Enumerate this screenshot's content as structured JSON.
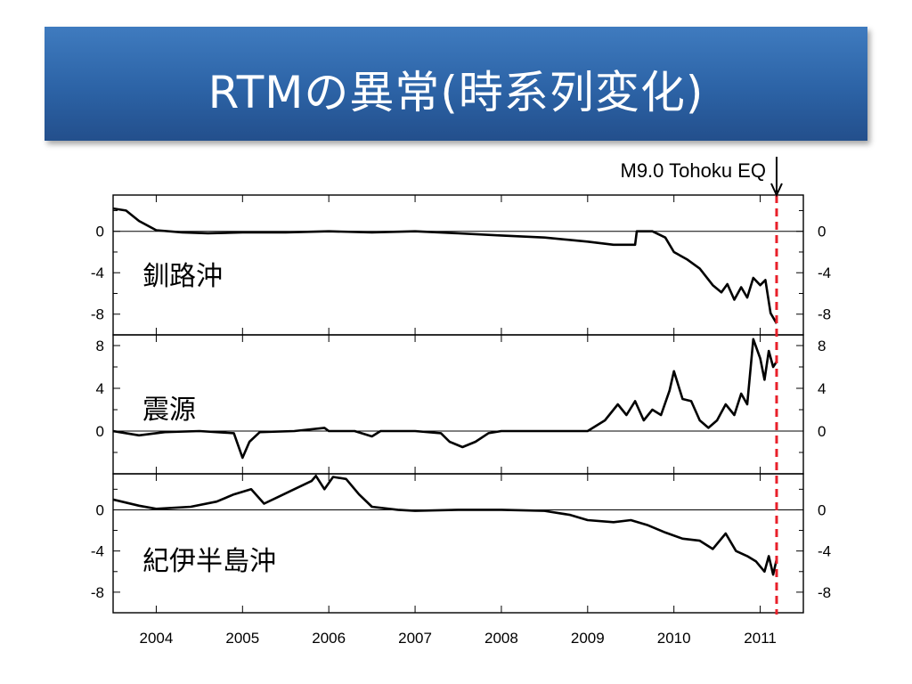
{
  "title": "RTMの異常(時系列変化)",
  "chart_data": {
    "type": "line",
    "x_tick_labels": [
      "2004",
      "2005",
      "2006",
      "2007",
      "2008",
      "2009",
      "2010",
      "2011"
    ],
    "x_range": [
      2003.5,
      2011.5
    ],
    "annotation": {
      "text": "M9.0 Tohoku EQ",
      "x": 2011.19
    },
    "panels": [
      {
        "label": "釧路沖",
        "ylim": [
          -10,
          3.5
        ],
        "yticks": [
          0,
          -4,
          -8
        ],
        "points": [
          [
            2003.5,
            2.2
          ],
          [
            2003.65,
            2.0
          ],
          [
            2003.8,
            1.0
          ],
          [
            2004.0,
            0.1
          ],
          [
            2004.3,
            -0.1
          ],
          [
            2004.6,
            -0.2
          ],
          [
            2005.0,
            -0.1
          ],
          [
            2005.5,
            -0.1
          ],
          [
            2006.0,
            0.0
          ],
          [
            2006.5,
            -0.1
          ],
          [
            2007.0,
            0.0
          ],
          [
            2007.5,
            -0.2
          ],
          [
            2008.0,
            -0.4
          ],
          [
            2008.5,
            -0.6
          ],
          [
            2009.0,
            -1.0
          ],
          [
            2009.3,
            -1.3
          ],
          [
            2009.55,
            -1.3
          ],
          [
            2009.57,
            0.0
          ],
          [
            2009.75,
            0.0
          ],
          [
            2009.9,
            -0.6
          ],
          [
            2010.0,
            -2.0
          ],
          [
            2010.15,
            -2.7
          ],
          [
            2010.3,
            -3.6
          ],
          [
            2010.45,
            -5.2
          ],
          [
            2010.55,
            -5.9
          ],
          [
            2010.62,
            -5.1
          ],
          [
            2010.7,
            -6.6
          ],
          [
            2010.78,
            -5.4
          ],
          [
            2010.85,
            -6.4
          ],
          [
            2010.92,
            -4.5
          ],
          [
            2011.0,
            -5.2
          ],
          [
            2011.06,
            -4.7
          ],
          [
            2011.12,
            -7.9
          ],
          [
            2011.19,
            -8.9
          ]
        ]
      },
      {
        "label": "震源",
        "ylim": [
          -4,
          9
        ],
        "yticks": [
          8,
          4,
          0
        ],
        "points": [
          [
            2003.5,
            0.0
          ],
          [
            2003.8,
            -0.4
          ],
          [
            2004.1,
            -0.1
          ],
          [
            2004.5,
            0.0
          ],
          [
            2004.9,
            -0.2
          ],
          [
            2005.0,
            -2.5
          ],
          [
            2005.08,
            -1.0
          ],
          [
            2005.2,
            -0.1
          ],
          [
            2005.6,
            0.0
          ],
          [
            2005.95,
            0.3
          ],
          [
            2006.0,
            0.0
          ],
          [
            2006.3,
            0.0
          ],
          [
            2006.5,
            -0.5
          ],
          [
            2006.6,
            0.0
          ],
          [
            2007.0,
            0.0
          ],
          [
            2007.3,
            -0.2
          ],
          [
            2007.4,
            -1.0
          ],
          [
            2007.55,
            -1.5
          ],
          [
            2007.7,
            -1.0
          ],
          [
            2007.85,
            -0.2
          ],
          [
            2008.0,
            0.0
          ],
          [
            2008.5,
            0.0
          ],
          [
            2009.0,
            0.0
          ],
          [
            2009.2,
            1.0
          ],
          [
            2009.35,
            2.5
          ],
          [
            2009.45,
            1.5
          ],
          [
            2009.55,
            2.8
          ],
          [
            2009.65,
            1.0
          ],
          [
            2009.75,
            2.0
          ],
          [
            2009.85,
            1.5
          ],
          [
            2009.95,
            3.8
          ],
          [
            2010.0,
            5.6
          ],
          [
            2010.1,
            3.0
          ],
          [
            2010.2,
            2.8
          ],
          [
            2010.3,
            1.0
          ],
          [
            2010.4,
            0.3
          ],
          [
            2010.5,
            1.0
          ],
          [
            2010.6,
            2.5
          ],
          [
            2010.7,
            1.5
          ],
          [
            2010.78,
            3.5
          ],
          [
            2010.85,
            2.5
          ],
          [
            2010.92,
            8.6
          ],
          [
            2011.0,
            6.8
          ],
          [
            2011.05,
            4.8
          ],
          [
            2011.1,
            7.5
          ],
          [
            2011.15,
            6.0
          ],
          [
            2011.19,
            6.5
          ]
        ]
      },
      {
        "label": "紀伊半島沖",
        "ylim": [
          -10,
          3.5
        ],
        "yticks": [
          0,
          -4,
          -8
        ],
        "points": [
          [
            2003.5,
            1.0
          ],
          [
            2003.8,
            0.4
          ],
          [
            2004.0,
            0.1
          ],
          [
            2004.4,
            0.3
          ],
          [
            2004.7,
            0.8
          ],
          [
            2004.9,
            1.5
          ],
          [
            2005.1,
            2.0
          ],
          [
            2005.25,
            0.6
          ],
          [
            2005.4,
            1.2
          ],
          [
            2005.6,
            2.0
          ],
          [
            2005.8,
            2.8
          ],
          [
            2005.85,
            3.3
          ],
          [
            2005.95,
            2.0
          ],
          [
            2006.05,
            3.2
          ],
          [
            2006.2,
            3.0
          ],
          [
            2006.35,
            1.5
          ],
          [
            2006.5,
            0.3
          ],
          [
            2006.8,
            0.0
          ],
          [
            2007.0,
            -0.1
          ],
          [
            2007.5,
            0.0
          ],
          [
            2008.0,
            0.0
          ],
          [
            2008.5,
            -0.1
          ],
          [
            2008.8,
            -0.5
          ],
          [
            2009.0,
            -1.0
          ],
          [
            2009.3,
            -1.2
          ],
          [
            2009.5,
            -1.0
          ],
          [
            2009.7,
            -1.5
          ],
          [
            2009.9,
            -2.2
          ],
          [
            2010.1,
            -2.8
          ],
          [
            2010.3,
            -3.0
          ],
          [
            2010.45,
            -3.8
          ],
          [
            2010.6,
            -2.3
          ],
          [
            2010.72,
            -4.0
          ],
          [
            2010.85,
            -4.5
          ],
          [
            2010.95,
            -5.0
          ],
          [
            2011.05,
            -6.0
          ],
          [
            2011.1,
            -4.5
          ],
          [
            2011.15,
            -6.3
          ],
          [
            2011.19,
            -4.8
          ]
        ]
      }
    ]
  }
}
